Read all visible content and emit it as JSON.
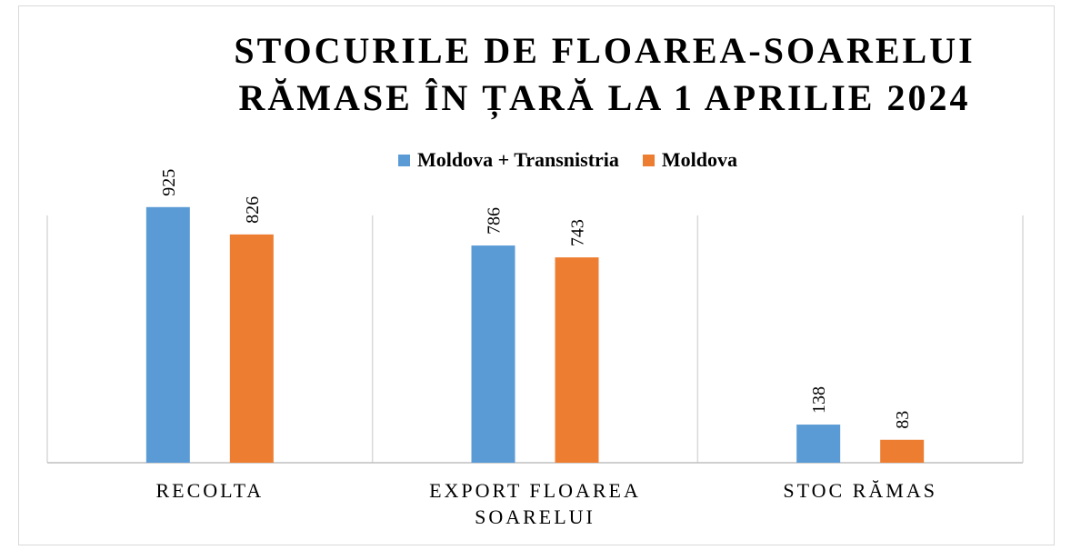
{
  "chart_data": {
    "type": "bar",
    "title_lines": [
      "STOCURILE DE FLOAREA-SOAREL​UI",
      "RĂMASE ÎN ȚARĂ LA 1 APRILIE 2024"
    ],
    "categories": [
      [
        "RECOLTA"
      ],
      [
        "EXPORT FLOAREA",
        "SOARELUI"
      ],
      [
        "STOC RĂMAS"
      ]
    ],
    "series": [
      {
        "name": "Moldova + Transnistria",
        "values": [
          925,
          786,
          138
        ],
        "color": "#5b9bd5"
      },
      {
        "name": "Moldova",
        "values": [
          826,
          743,
          83
        ],
        "color": "#ed7d31"
      }
    ],
    "ylim": [
      0,
      1000
    ],
    "legend_position": "top",
    "grid": false
  }
}
